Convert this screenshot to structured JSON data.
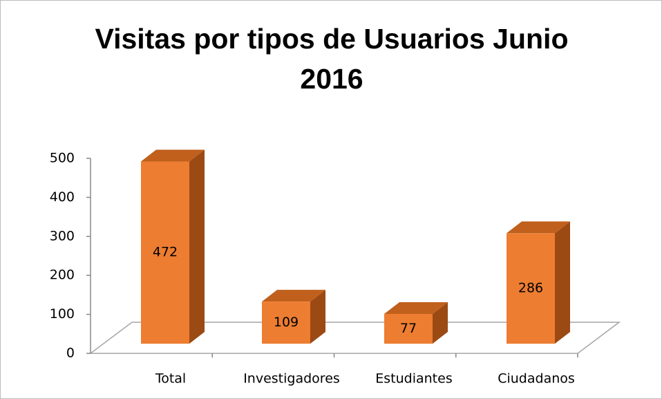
{
  "chart_data": {
    "type": "bar3d",
    "title": "Visitas por tipos de Usuarios Junio 2016",
    "categories": [
      "Total",
      "Investigadores",
      "Estudiantes",
      "Ciudadanos"
    ],
    "values": [
      472,
      109,
      77,
      286
    ],
    "color": "#ed7d31",
    "ylim": [
      0,
      500
    ],
    "yticks": [
      0,
      100,
      200,
      300,
      400,
      500
    ],
    "grid": false
  }
}
